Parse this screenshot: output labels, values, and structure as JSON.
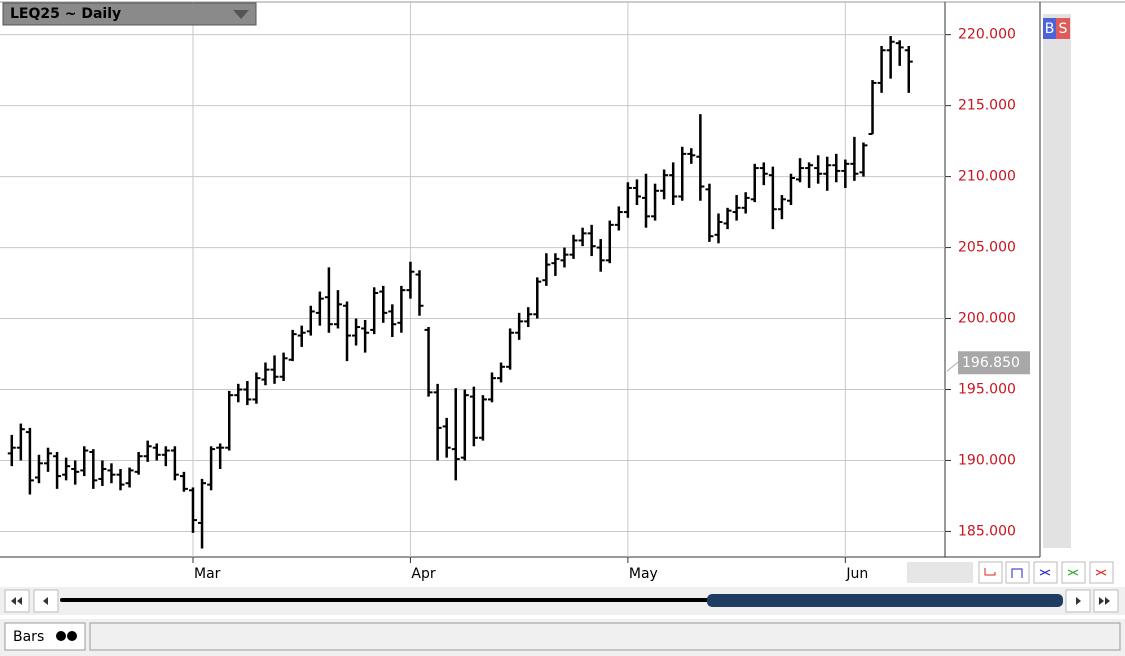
{
  "chart_data": {
    "type": "ohlc",
    "title": "LEQ25 ~ Daily",
    "color": "#000000",
    "grid": true,
    "xlim": [
      -1.3,
      103
    ],
    "xticks": [
      {
        "value": 20,
        "label": "Mar"
      },
      {
        "value": 44,
        "label": "Apr"
      },
      {
        "value": 68,
        "label": "May"
      },
      {
        "value": 92,
        "label": "Jun"
      }
    ],
    "ylim": [
      183.2,
      222.3
    ],
    "yticks": [
      {
        "value": 185,
        "label": "185.000"
      },
      {
        "value": 190,
        "label": "190.000"
      },
      {
        "value": 195,
        "label": "195.000"
      },
      {
        "value": 200,
        "label": "200.000"
      },
      {
        "value": 205,
        "label": "205.000"
      },
      {
        "value": 210,
        "label": "210.000"
      },
      {
        "value": 215,
        "label": "215.000"
      },
      {
        "value": 220,
        "label": "220.000"
      }
    ],
    "price_marker": {
      "value": 196.85,
      "label": "196.850"
    },
    "values": [
      [
        190.5,
        191.8,
        189.6,
        190.9
      ],
      [
        190.9,
        192.6,
        190.0,
        192.2
      ],
      [
        192.0,
        192.3,
        187.6,
        188.6
      ],
      [
        188.8,
        190.4,
        188.4,
        189.8
      ],
      [
        189.8,
        190.9,
        189.2,
        190.5
      ],
      [
        190.3,
        190.6,
        188.0,
        188.9
      ],
      [
        189.0,
        190.2,
        188.6,
        189.6
      ],
      [
        189.4,
        190.0,
        188.3,
        189.2
      ],
      [
        189.3,
        191.0,
        188.9,
        190.7
      ],
      [
        190.6,
        190.8,
        188.0,
        188.6
      ],
      [
        188.7,
        190.0,
        188.2,
        189.4
      ],
      [
        189.3,
        189.8,
        188.4,
        189.0
      ],
      [
        189.0,
        189.4,
        187.9,
        188.3
      ],
      [
        188.4,
        189.5,
        188.1,
        189.3
      ],
      [
        189.2,
        190.6,
        189.0,
        190.3
      ],
      [
        190.3,
        191.4,
        189.9,
        191.0
      ],
      [
        190.9,
        191.2,
        190.0,
        190.4
      ],
      [
        190.4,
        191.0,
        189.6,
        190.7
      ],
      [
        190.7,
        191.0,
        188.6,
        189.0
      ],
      [
        188.9,
        189.2,
        187.8,
        188.0
      ],
      [
        187.9,
        188.1,
        184.9,
        185.8
      ],
      [
        185.6,
        188.7,
        183.8,
        188.4
      ],
      [
        188.3,
        191.0,
        187.9,
        190.8
      ],
      [
        190.9,
        191.2,
        189.4,
        190.9
      ],
      [
        190.9,
        194.9,
        190.7,
        194.6
      ],
      [
        194.6,
        195.4,
        194.1,
        195.0
      ],
      [
        195.0,
        195.6,
        193.9,
        194.3
      ],
      [
        194.3,
        196.2,
        194.0,
        195.8
      ],
      [
        195.7,
        196.9,
        195.3,
        196.4
      ],
      [
        196.4,
        197.4,
        195.4,
        195.9
      ],
      [
        195.9,
        197.6,
        195.6,
        197.2
      ],
      [
        197.1,
        199.2,
        197.0,
        198.9
      ],
      [
        198.8,
        199.5,
        198.0,
        199.0
      ],
      [
        199.1,
        200.9,
        198.8,
        200.5
      ],
      [
        200.4,
        201.9,
        199.5,
        201.4
      ],
      [
        201.5,
        203.6,
        199.0,
        199.6
      ],
      [
        199.6,
        202.0,
        199.3,
        201.0
      ],
      [
        200.9,
        201.2,
        197.0,
        198.8
      ],
      [
        198.8,
        200.0,
        198.1,
        199.4
      ],
      [
        199.3,
        199.9,
        197.6,
        199.0
      ],
      [
        199.2,
        202.2,
        198.9,
        201.8
      ],
      [
        201.9,
        202.3,
        199.7,
        200.4
      ],
      [
        200.5,
        201.0,
        198.7,
        199.6
      ],
      [
        199.7,
        202.3,
        199.0,
        202.0
      ],
      [
        202.0,
        204.0,
        201.4,
        203.3
      ],
      [
        203.1,
        203.4,
        200.2,
        200.9
      ],
      [
        199.2,
        199.4,
        194.5,
        194.8
      ],
      [
        194.8,
        195.4,
        190.0,
        192.3
      ],
      [
        192.4,
        193.0,
        190.2,
        190.9
      ],
      [
        190.8,
        195.1,
        188.6,
        190.1
      ],
      [
        190.2,
        195.0,
        190.0,
        194.6
      ],
      [
        194.5,
        195.2,
        191.0,
        191.6
      ],
      [
        191.6,
        194.6,
        191.4,
        194.3
      ],
      [
        194.3,
        196.2,
        194.1,
        195.8
      ],
      [
        195.8,
        196.9,
        195.5,
        196.6
      ],
      [
        196.6,
        199.3,
        196.4,
        199.0
      ],
      [
        199.0,
        200.4,
        198.5,
        199.8
      ],
      [
        199.8,
        200.8,
        199.4,
        200.3
      ],
      [
        200.3,
        202.9,
        200.0,
        202.6
      ],
      [
        202.7,
        204.6,
        202.3,
        203.8
      ],
      [
        203.9,
        204.6,
        203.0,
        204.2
      ],
      [
        204.1,
        205.0,
        203.6,
        204.5
      ],
      [
        204.5,
        205.9,
        204.2,
        205.5
      ],
      [
        205.5,
        206.4,
        205.1,
        206.0
      ],
      [
        206.0,
        206.6,
        204.4,
        205.1
      ],
      [
        205.0,
        205.6,
        203.3,
        204.1
      ],
      [
        204.1,
        206.9,
        203.9,
        206.6
      ],
      [
        206.6,
        207.9,
        206.2,
        207.5
      ],
      [
        207.5,
        209.6,
        207.1,
        209.2
      ],
      [
        209.2,
        209.8,
        208.0,
        208.6
      ],
      [
        208.5,
        210.2,
        206.4,
        207.2
      ],
      [
        207.2,
        209.5,
        206.9,
        209.0
      ],
      [
        209.0,
        210.5,
        208.4,
        210.1
      ],
      [
        210.1,
        211.0,
        208.0,
        208.6
      ],
      [
        208.6,
        212.1,
        208.3,
        211.6
      ],
      [
        211.6,
        212.0,
        210.9,
        211.5
      ],
      [
        211.4,
        214.4,
        208.3,
        209.3
      ],
      [
        209.1,
        209.5,
        205.4,
        205.8
      ],
      [
        205.9,
        207.4,
        205.3,
        206.8
      ],
      [
        206.7,
        207.8,
        206.3,
        207.6
      ],
      [
        207.5,
        208.7,
        206.9,
        207.8
      ],
      [
        207.8,
        208.9,
        207.4,
        208.5
      ],
      [
        208.4,
        210.9,
        208.2,
        210.6
      ],
      [
        210.6,
        211.0,
        209.4,
        210.2
      ],
      [
        210.1,
        210.7,
        206.3,
        207.7
      ],
      [
        207.7,
        208.7,
        207.0,
        208.4
      ],
      [
        208.3,
        210.2,
        208.0,
        209.9
      ],
      [
        209.8,
        211.3,
        209.6,
        210.6
      ],
      [
        210.6,
        211.0,
        209.2,
        210.8
      ],
      [
        210.6,
        211.5,
        209.5,
        210.2
      ],
      [
        210.2,
        211.4,
        209.0,
        210.8
      ],
      [
        210.8,
        211.6,
        209.6,
        210.4
      ],
      [
        210.4,
        211.2,
        209.2,
        210.9
      ],
      [
        210.9,
        212.8,
        209.7,
        210.2
      ],
      [
        210.3,
        212.4,
        210.0,
        212.2
      ],
      [
        213.0,
        216.8,
        213.0,
        216.6
      ],
      [
        216.6,
        219.2,
        215.9,
        218.9
      ],
      [
        218.9,
        219.9,
        216.9,
        219.5
      ],
      [
        219.4,
        219.6,
        217.8,
        219.1
      ],
      [
        218.9,
        219.2,
        215.9,
        218.1
      ]
    ]
  },
  "toolbar": {
    "buy": "B",
    "sell": "S",
    "view": "Bars"
  }
}
